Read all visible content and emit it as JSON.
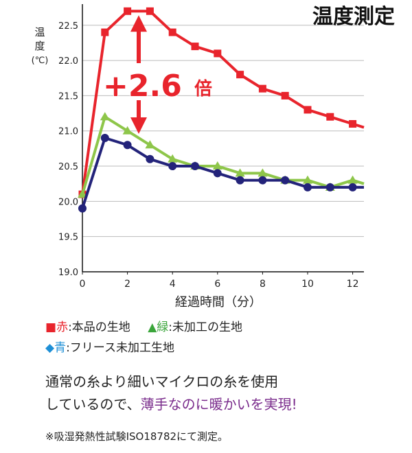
{
  "chart_data": {
    "type": "line",
    "title": "温度測定",
    "ylabel_lines": [
      "温",
      "度",
      "(℃)"
    ],
    "xlabel": "経過時間（分）",
    "ylim": [
      19.0,
      22.8
    ],
    "xlim": [
      0,
      12.5
    ],
    "yticks": [
      19.0,
      19.5,
      20.0,
      20.5,
      21.0,
      21.5,
      22.0,
      22.5
    ],
    "ytick_labels": [
      "19.0",
      "19.5",
      "20.0",
      "20.5",
      "21.0",
      "21.5",
      "22.0",
      "22.5"
    ],
    "xticks": [
      0,
      2,
      4,
      6,
      8,
      10,
      12
    ],
    "xtick_labels": [
      "0",
      "2",
      "4",
      "6",
      "8",
      "10",
      "12"
    ],
    "grid": true,
    "x": [
      0,
      1,
      2,
      3,
      4,
      5,
      6,
      7,
      8,
      9,
      10,
      11,
      12
    ],
    "series": [
      {
        "key": "red",
        "color": "#e8242c",
        "marker": "square",
        "values": [
          20.1,
          22.4,
          22.7,
          22.7,
          22.4,
          22.2,
          22.1,
          21.8,
          21.6,
          21.5,
          21.3,
          21.2,
          21.1
        ],
        "end_value": 21.05
      },
      {
        "key": "green",
        "color": "#8ec64a",
        "marker": "triangle",
        "values": [
          20.1,
          21.2,
          21.0,
          20.8,
          20.6,
          20.5,
          20.5,
          20.4,
          20.4,
          20.3,
          20.3,
          20.2,
          20.3
        ],
        "end_value": 20.25
      },
      {
        "key": "navy",
        "color": "#23237a",
        "marker": "circle",
        "values": [
          19.9,
          20.9,
          20.8,
          20.6,
          20.5,
          20.5,
          20.4,
          20.3,
          20.3,
          20.3,
          20.2,
          20.2,
          20.2
        ],
        "end_value": 20.2
      }
    ],
    "annotation": {
      "text": "+2.6",
      "suffix": "倍",
      "color": "#e8242c",
      "at_x": 2.5,
      "from_value": 20.9,
      "to_value": 22.7
    }
  },
  "legend": {
    "red": {
      "symbol": "■",
      "color_word": "赤",
      "text": ":本品の生地"
    },
    "green": {
      "symbol": "▲",
      "color_word": "緑",
      "text": ":未加工の生地"
    },
    "blue": {
      "symbol": "◆",
      "color_word": "青",
      "text": ":フリース未加工生地"
    }
  },
  "description": {
    "line1": "通常の糸より細いマイクロの糸を使用",
    "line2_prefix": "しているので、",
    "line2_highlight": "薄手なのに暖かいを実現!"
  },
  "footnote": "※吸湿発熱性試験ISO18782にて測定。"
}
